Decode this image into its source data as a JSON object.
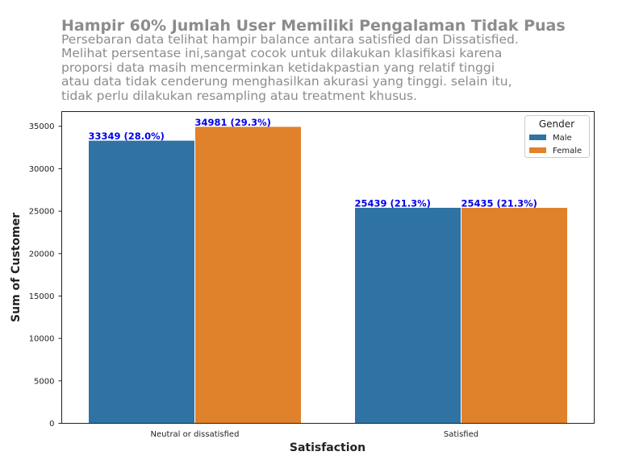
{
  "header": {
    "title": "Hampir 60% Jumlah User Memiliki Pengalaman Tidak Puas",
    "subtitle": "Persebaran data telihat hampir balance antara satisfied dan Dissatisfied.\nMelihat persentase ini,sangat cocok untuk dilakukan klasifikasi karena\nproporsi data masih mencerminkan ketidakpastian yang relatif tinggi\natau data tidak cenderung menghasilkan akurasi yang tinggi. selain itu,\ntidak perlu dilakukan resampling atau treatment khusus."
  },
  "chart_data": {
    "type": "bar",
    "categories": [
      "Neutral or dissatisfied",
      "Satisfied"
    ],
    "series": [
      {
        "name": "Male",
        "color": "#2e73a3",
        "values": [
          33349,
          25439
        ],
        "labels": [
          "33349 (28.0%)",
          "25439 (21.3%)"
        ]
      },
      {
        "name": "Female",
        "color": "#e0812c",
        "values": [
          34981,
          25435
        ],
        "labels": [
          "34981 (29.3%)",
          "25435 (21.3%)"
        ]
      }
    ],
    "xlabel": "Satisfaction",
    "ylabel": "Sum of Customer",
    "ylim": [
      0,
      36730
    ],
    "yticks": [
      0,
      5000,
      10000,
      15000,
      20000,
      25000,
      30000,
      35000
    ],
    "legend": {
      "title": "Gender",
      "position": "top-right"
    },
    "grid": false,
    "label_color": "#0000ee"
  }
}
